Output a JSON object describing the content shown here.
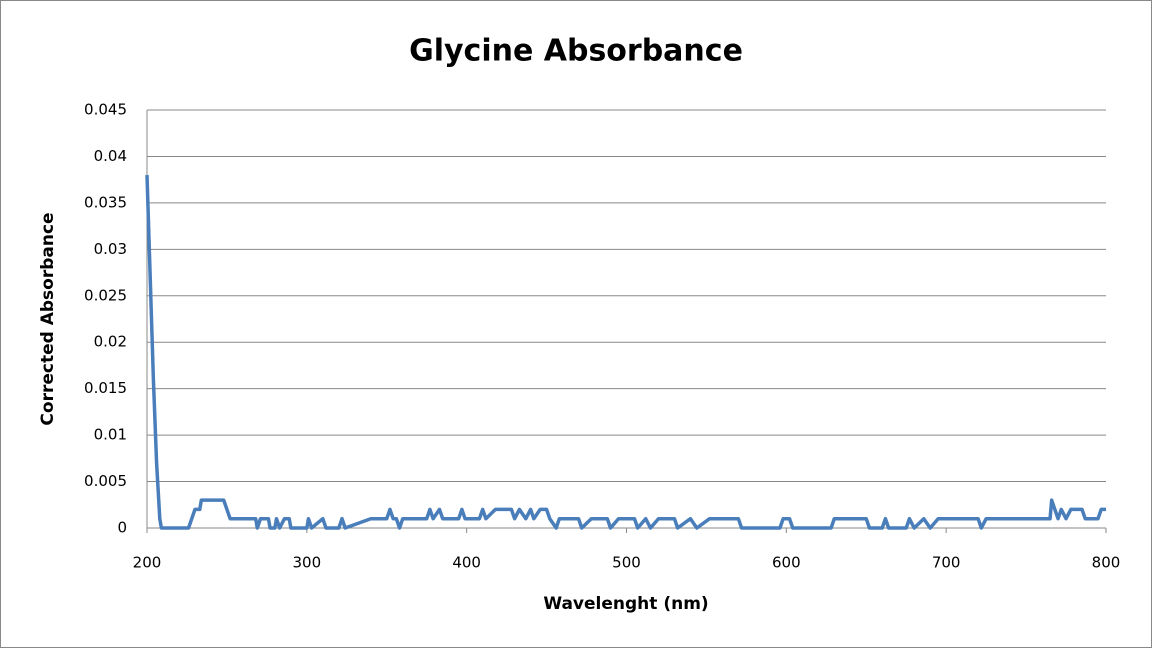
{
  "chart_data": {
    "type": "line",
    "title": "Glycine Absorbance",
    "x_label": "Wavelenght (nm)",
    "y_label": "Corrected Absorbance",
    "xlim": [
      200,
      800
    ],
    "xticks": [
      200,
      300,
      400,
      500,
      600,
      700,
      800
    ],
    "ylim": [
      0,
      0.045
    ],
    "yticks": [
      0,
      0.005,
      0.01,
      0.015,
      0.02,
      0.025,
      0.03,
      0.035,
      0.04,
      0.045
    ],
    "grid": true,
    "series": [
      {
        "color": "#4a7ebb",
        "x": [
          200,
          202,
          204,
          206,
          207,
          208,
          209,
          226,
          228,
          230,
          233,
          234,
          248,
          250,
          252,
          268,
          269,
          271,
          276,
          277,
          280,
          281,
          283,
          286,
          289,
          290,
          300,
          301,
          303,
          310,
          312,
          320,
          322,
          324,
          340,
          350,
          352,
          354,
          356,
          358,
          360,
          375,
          377,
          379,
          383,
          385,
          395,
          397,
          399,
          408,
          410,
          412,
          418,
          428,
          430,
          433,
          437,
          440,
          442,
          446,
          450,
          452,
          456,
          458,
          470,
          472,
          478,
          488,
          490,
          495,
          505,
          507,
          512,
          515,
          520,
          530,
          532,
          540,
          544,
          552,
          570,
          572,
          596,
          598,
          602,
          604,
          628,
          630,
          650,
          652,
          660,
          662,
          664,
          675,
          677,
          680,
          686,
          690,
          695,
          720,
          722,
          725,
          760,
          765,
          766,
          768,
          770,
          772,
          775,
          778,
          785,
          787,
          795,
          797,
          800
        ],
        "values": [
          0.038,
          0.027,
          0.016,
          0.007,
          0.004,
          0.001,
          0,
          0,
          0.001,
          0.002,
          0.002,
          0.003,
          0.003,
          0.002,
          0.001,
          0.001,
          0,
          0.001,
          0.001,
          0,
          0,
          0.001,
          0,
          0.001,
          0.001,
          0,
          0,
          0.001,
          0,
          0.001,
          0,
          0,
          0.001,
          0,
          0.001,
          0.001,
          0.002,
          0.001,
          0.001,
          0,
          0.001,
          0.001,
          0.002,
          0.001,
          0.002,
          0.001,
          0.001,
          0.002,
          0.001,
          0.001,
          0.002,
          0.001,
          0.002,
          0.002,
          0.001,
          0.002,
          0.001,
          0.002,
          0.001,
          0.002,
          0.002,
          0.001,
          0,
          0.001,
          0.001,
          0,
          0.001,
          0.001,
          0,
          0.001,
          0.001,
          0,
          0.001,
          0,
          0.001,
          0.001,
          0,
          0.001,
          0,
          0.001,
          0.001,
          0,
          0,
          0.001,
          0.001,
          0,
          0,
          0.001,
          0.001,
          0,
          0,
          0.001,
          0,
          0,
          0.001,
          0,
          0.001,
          0,
          0.001,
          0.001,
          0,
          0.001,
          0.001,
          0.001,
          0.003,
          0.002,
          0.001,
          0.002,
          0.001,
          0.002,
          0.002,
          0.001,
          0.001,
          0.002,
          0.002
        ]
      }
    ]
  }
}
